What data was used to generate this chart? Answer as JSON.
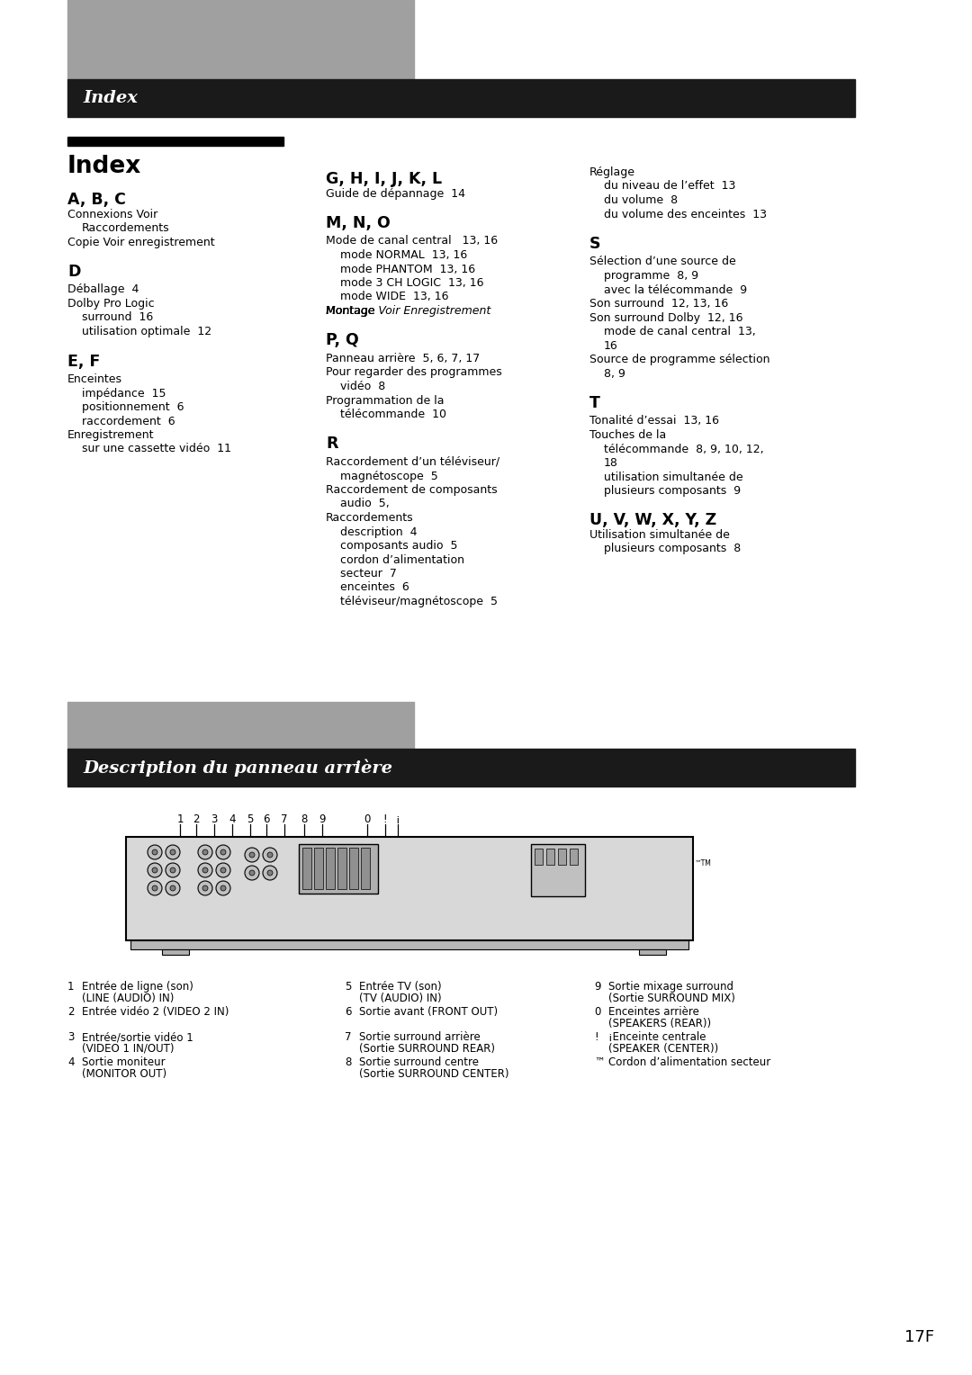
{
  "bg_color": "#ffffff",
  "header_bar_color": "#1a1a1a",
  "header_gray_color": "#a0a0a0",
  "header_text_color": "#ffffff",
  "header1_text": "Index",
  "header2_text": "Description du panneau arrière",
  "page_number": "17F",
  "index_title": "Index",
  "col1_content": [
    {
      "type": "section_header",
      "text": "A, B, C"
    },
    {
      "type": "body",
      "text": "Connexions Voir"
    },
    {
      "type": "body_indent",
      "text": "Raccordements"
    },
    {
      "type": "body",
      "text": "Copie Voir enregistrement"
    },
    {
      "type": "spacer"
    },
    {
      "type": "section_header",
      "text": "D"
    },
    {
      "type": "body_spacer"
    },
    {
      "type": "body",
      "text": "Déballage  4"
    },
    {
      "type": "body",
      "text": "Dolby Pro Logic"
    },
    {
      "type": "body_indent",
      "text": "surround  16"
    },
    {
      "type": "body_indent",
      "text": "utilisation optimale  12"
    },
    {
      "type": "spacer"
    },
    {
      "type": "section_header",
      "text": "E, F"
    },
    {
      "type": "body_spacer"
    },
    {
      "type": "body",
      "text": "Enceintes"
    },
    {
      "type": "body_indent",
      "text": "impédance  15"
    },
    {
      "type": "body_indent",
      "text": "positionnement  6"
    },
    {
      "type": "body_indent",
      "text": "raccordement  6"
    },
    {
      "type": "body",
      "text": "Enregistrement"
    },
    {
      "type": "body_indent",
      "text": "sur une cassette vidéo  11"
    }
  ],
  "col2_content": [
    {
      "type": "section_header",
      "text": "G, H, I, J, K, L"
    },
    {
      "type": "body",
      "text": "Guide de dépannage  14"
    },
    {
      "type": "spacer"
    },
    {
      "type": "section_header",
      "text": "M, N, O"
    },
    {
      "type": "body_spacer"
    },
    {
      "type": "body",
      "text": "Mode de canal central   13, 16"
    },
    {
      "type": "body_indent",
      "text": "mode NORMAL  13, 16"
    },
    {
      "type": "body_indent",
      "text": "mode PHANTOM  13, 16"
    },
    {
      "type": "body_indent",
      "text": "mode 3 CH LOGIC  13, 16"
    },
    {
      "type": "body_indent",
      "text": "mode WIDE  13, 16"
    },
    {
      "type": "body_italic_part",
      "text": "Montage ",
      "italic": "Voir",
      "rest": " Enregistrement"
    },
    {
      "type": "spacer"
    },
    {
      "type": "section_header",
      "text": "P, Q"
    },
    {
      "type": "body_spacer"
    },
    {
      "type": "body",
      "text": "Panneau arrière  5, 6, 7, 17"
    },
    {
      "type": "body",
      "text": "Pour regarder des programmes"
    },
    {
      "type": "body_indent",
      "text": "vidéo  8"
    },
    {
      "type": "body",
      "text": "Programmation de la"
    },
    {
      "type": "body_indent",
      "text": "télécommande  10"
    },
    {
      "type": "spacer"
    },
    {
      "type": "section_header",
      "text": "R"
    },
    {
      "type": "body_spacer"
    },
    {
      "type": "body",
      "text": "Raccordement d’un téléviseur/"
    },
    {
      "type": "body_indent",
      "text": "magnétoscope  5"
    },
    {
      "type": "body",
      "text": "Raccordement de composants"
    },
    {
      "type": "body_indent",
      "text": "audio  5,"
    },
    {
      "type": "body",
      "text": "Raccordements"
    },
    {
      "type": "body_indent",
      "text": "description  4"
    },
    {
      "type": "body_indent",
      "text": "composants audio  5"
    },
    {
      "type": "body_indent",
      "text": "cordon d’alimentation"
    },
    {
      "type": "body_indent",
      "text": "secteur  7"
    },
    {
      "type": "body_indent",
      "text": "enceintes  6"
    },
    {
      "type": "body_indent",
      "text": "téléviseur/magnétoscope  5"
    }
  ],
  "col3_content": [
    {
      "type": "body",
      "text": "Réglage"
    },
    {
      "type": "body_indent",
      "text": "du niveau de l’effet  13"
    },
    {
      "type": "body_indent",
      "text": "du volume  8"
    },
    {
      "type": "body_indent",
      "text": "du volume des enceintes  13"
    },
    {
      "type": "spacer"
    },
    {
      "type": "section_header",
      "text": "S"
    },
    {
      "type": "body_spacer"
    },
    {
      "type": "body",
      "text": "Sélection d’une source de"
    },
    {
      "type": "body_indent",
      "text": "programme  8, 9"
    },
    {
      "type": "body_indent",
      "text": "avec la télécommande  9"
    },
    {
      "type": "body",
      "text": "Son surround  12, 13, 16"
    },
    {
      "type": "body",
      "text": "Son surround Dolby  12, 16"
    },
    {
      "type": "body_indent",
      "text": "mode de canal central  13,"
    },
    {
      "type": "body_indent",
      "text": "16"
    },
    {
      "type": "body",
      "text": "Source de programme sélection"
    },
    {
      "type": "body_indent",
      "text": "8, 9"
    },
    {
      "type": "spacer"
    },
    {
      "type": "section_header",
      "text": "T"
    },
    {
      "type": "body_spacer"
    },
    {
      "type": "body",
      "text": "Tonalité d’essai  13, 16"
    },
    {
      "type": "body",
      "text": "Touches de la"
    },
    {
      "type": "body_indent",
      "text": "télécommande  8, 9, 10, 12,"
    },
    {
      "type": "body_indent",
      "text": "18"
    },
    {
      "type": "body_indent",
      "text": "utilisation simultanée de"
    },
    {
      "type": "body_indent",
      "text": "plusieurs composants  9"
    },
    {
      "type": "spacer"
    },
    {
      "type": "section_header",
      "text": "U, V, W, X, Y, Z"
    },
    {
      "type": "body",
      "text": "Utilisation simultanée de"
    },
    {
      "type": "body_indent",
      "text": "plusieurs composants  8"
    }
  ],
  "bottom_col1": [
    [
      "1",
      "Entrée de ligne (son)",
      "(LINE (AUDIO) IN)"
    ],
    [
      "2",
      "Entrée vidéo 2 (VIDEO 2 IN)",
      ""
    ],
    [
      "3",
      "Entrée/sortie vidéo 1",
      "(VIDEO 1 IN/OUT)"
    ],
    [
      "4",
      "Sortie moniteur",
      "(MONITOR OUT)"
    ]
  ],
  "bottom_col2": [
    [
      "5",
      "Entrée TV (son)",
      "(TV (AUDIO) IN)"
    ],
    [
      "6",
      "Sortie avant (FRONT OUT)",
      ""
    ],
    [
      "7",
      "Sortie surround arrière",
      "(Sortie SURROUND REAR)"
    ],
    [
      "8",
      "Sortie surround centre",
      "(Sortie SURROUND CENTER)"
    ]
  ],
  "bottom_col3": [
    [
      "9",
      "Sortie mixage surround",
      "(Sortie SURROUND MIX)"
    ],
    [
      "0",
      "Enceintes arrière",
      "(SPEAKERS (REAR))"
    ],
    [
      "!",
      "¡Enceinte centrale",
      "(SPEAKER (CENTER))"
    ],
    [
      "™",
      "Cordon d’alimentation secteur",
      ""
    ]
  ],
  "number_positions": [
    200,
    218,
    238,
    258,
    278,
    296,
    316,
    338,
    358,
    408,
    428,
    442
  ],
  "number_labels": [
    "1",
    "2",
    "3",
    "4",
    "5",
    "6",
    "7",
    "8",
    "9",
    "0",
    "!",
    "¡"
  ]
}
